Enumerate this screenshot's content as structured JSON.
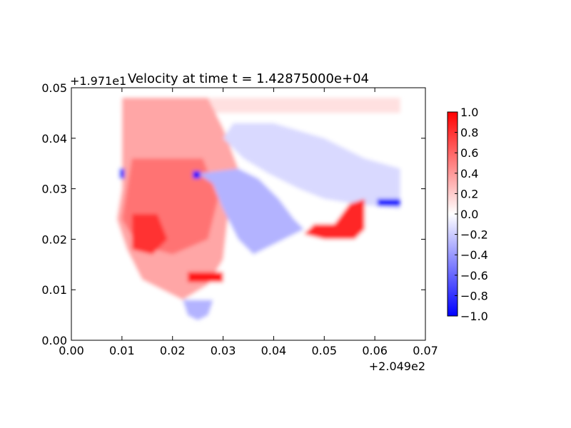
{
  "chart_data": {
    "type": "heatmap",
    "title": "Velocity at time t = 1.42875000e+04",
    "xlabel": "",
    "ylabel": "",
    "x_offset_label": "+2.049e2",
    "y_offset_label": "+1.971e1",
    "xlim": [
      0.0,
      0.07
    ],
    "ylim": [
      0.0,
      0.05
    ],
    "x_ticks": [
      "0.00",
      "0.01",
      "0.02",
      "0.03",
      "0.04",
      "0.05",
      "0.06",
      "0.07"
    ],
    "y_ticks": [
      "0.00",
      "0.01",
      "0.02",
      "0.03",
      "0.04",
      "0.05"
    ],
    "colorbar": {
      "vmin": -1.0,
      "vmax": 1.0,
      "colormap": "bwr",
      "ticks": [
        "−1.0",
        "−0.8",
        "−0.6",
        "−0.4",
        "−0.2",
        "0.0",
        "0.2",
        "0.4",
        "0.6",
        "0.8",
        "1.0"
      ]
    },
    "colors": {
      "positive": "#ff0000",
      "negative": "#0000ff",
      "zero": "#ffffff"
    },
    "regions": [
      {
        "name": "domain-background",
        "polygon": [
          [
            0.005,
            0.048
          ],
          [
            0.065,
            0.048
          ],
          [
            0.065,
            0.022
          ],
          [
            0.06,
            0.015
          ],
          [
            0.04,
            0.012
          ],
          [
            0.03,
            0.01
          ],
          [
            0.025,
            0.004
          ],
          [
            0.015,
            0.01
          ],
          [
            0.005,
            0.005
          ]
        ],
        "value": 0.0
      },
      {
        "name": "top-band",
        "polygon": [
          [
            0.01,
            0.048
          ],
          [
            0.065,
            0.048
          ],
          [
            0.065,
            0.045
          ],
          [
            0.01,
            0.045
          ]
        ],
        "value": 0.12
      },
      {
        "name": "west-basin",
        "polygon": [
          [
            0.01,
            0.048
          ],
          [
            0.027,
            0.048
          ],
          [
            0.03,
            0.042
          ],
          [
            0.033,
            0.034
          ],
          [
            0.031,
            0.025
          ],
          [
            0.03,
            0.016
          ],
          [
            0.027,
            0.011
          ],
          [
            0.022,
            0.008
          ],
          [
            0.014,
            0.012
          ],
          [
            0.011,
            0.018
          ],
          [
            0.009,
            0.024
          ],
          [
            0.01,
            0.03
          ],
          [
            0.01,
            0.04
          ]
        ],
        "value": 0.35
      },
      {
        "name": "west-core",
        "polygon": [
          [
            0.012,
            0.036
          ],
          [
            0.026,
            0.036
          ],
          [
            0.029,
            0.028
          ],
          [
            0.027,
            0.02
          ],
          [
            0.02,
            0.017
          ],
          [
            0.013,
            0.019
          ],
          [
            0.01,
            0.024
          ]
        ],
        "value": 0.55
      },
      {
        "name": "southwest-strong",
        "polygon": [
          [
            0.012,
            0.025
          ],
          [
            0.017,
            0.025
          ],
          [
            0.019,
            0.02
          ],
          [
            0.016,
            0.017
          ],
          [
            0.012,
            0.018
          ]
        ],
        "value": 0.8
      },
      {
        "name": "central-bay",
        "polygon": [
          [
            0.025,
            0.033
          ],
          [
            0.033,
            0.034
          ],
          [
            0.037,
            0.032
          ],
          [
            0.041,
            0.028
          ],
          [
            0.044,
            0.024
          ],
          [
            0.046,
            0.022
          ],
          [
            0.04,
            0.019
          ],
          [
            0.036,
            0.017
          ],
          [
            0.033,
            0.02
          ],
          [
            0.03,
            0.026
          ],
          [
            0.028,
            0.031
          ]
        ],
        "value": -0.3
      },
      {
        "name": "north-bay",
        "polygon": [
          [
            0.032,
            0.043
          ],
          [
            0.04,
            0.043
          ],
          [
            0.05,
            0.04
          ],
          [
            0.058,
            0.036
          ],
          [
            0.065,
            0.034
          ],
          [
            0.065,
            0.026
          ],
          [
            0.056,
            0.027
          ],
          [
            0.05,
            0.028
          ],
          [
            0.045,
            0.03
          ],
          [
            0.039,
            0.033
          ],
          [
            0.034,
            0.036
          ],
          [
            0.03,
            0.04
          ]
        ],
        "value": -0.15
      },
      {
        "name": "east-channel",
        "polygon": [
          [
            0.048,
            0.023
          ],
          [
            0.052,
            0.023
          ],
          [
            0.055,
            0.027
          ],
          [
            0.058,
            0.028
          ],
          [
            0.058,
            0.022
          ],
          [
            0.056,
            0.02
          ],
          [
            0.05,
            0.02
          ],
          [
            0.046,
            0.021
          ]
        ],
        "value": 0.85
      },
      {
        "name": "east-jet",
        "polygon": [
          [
            0.0605,
            0.028
          ],
          [
            0.065,
            0.028
          ],
          [
            0.065,
            0.0265
          ],
          [
            0.0605,
            0.0265
          ]
        ],
        "value": -0.9
      },
      {
        "name": "south-lobe",
        "polygon": [
          [
            0.022,
            0.008
          ],
          [
            0.028,
            0.008
          ],
          [
            0.027,
            0.005
          ],
          [
            0.025,
            0.004
          ],
          [
            0.023,
            0.005
          ]
        ],
        "value": -0.3
      },
      {
        "name": "south-shore-jet",
        "polygon": [
          [
            0.023,
            0.0135
          ],
          [
            0.03,
            0.0135
          ],
          [
            0.03,
            0.0115
          ],
          [
            0.023,
            0.0115
          ]
        ],
        "value": 0.9
      },
      {
        "name": "west-edge-blue",
        "polygon": [
          [
            0.0095,
            0.034
          ],
          [
            0.0105,
            0.034
          ],
          [
            0.0105,
            0.032
          ],
          [
            0.0095,
            0.032
          ]
        ],
        "value": -0.85
      },
      {
        "name": "point-blue",
        "polygon": [
          [
            0.024,
            0.0335
          ],
          [
            0.0255,
            0.0335
          ],
          [
            0.0255,
            0.032
          ],
          [
            0.024,
            0.032
          ]
        ],
        "value": -0.95
      }
    ]
  }
}
